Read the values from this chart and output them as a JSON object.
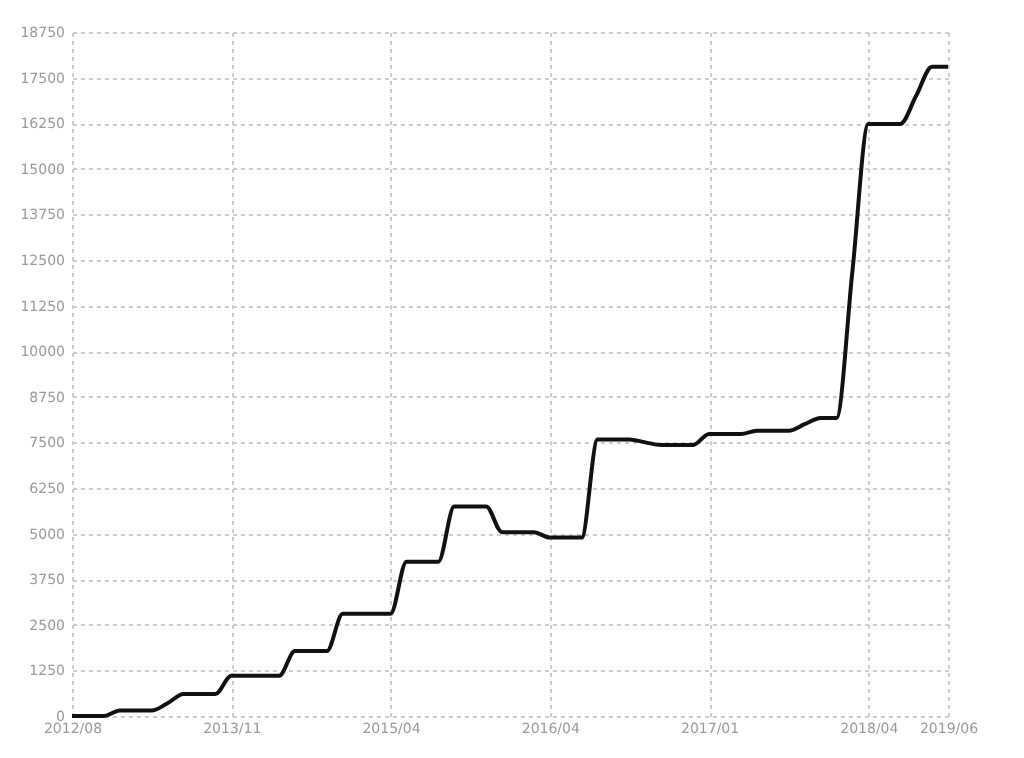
{
  "chart_data": {
    "type": "line",
    "categories": [
      "2012/08",
      null,
      null,
      null,
      null,
      null,
      null,
      null,
      null,
      null,
      "2013/11",
      null,
      null,
      null,
      null,
      null,
      null,
      null,
      null,
      null,
      "2015/04",
      null,
      null,
      null,
      null,
      null,
      null,
      null,
      null,
      null,
      "2016/04",
      null,
      null,
      null,
      null,
      null,
      null,
      null,
      null,
      null,
      "2017/01",
      null,
      null,
      null,
      null,
      null,
      null,
      null,
      null,
      null,
      "2018/04",
      null,
      null,
      null,
      null,
      "2019/06"
    ],
    "series": [
      {
        "color": "#111111",
        "values": [
          0,
          0,
          0,
          150,
          150,
          150,
          350,
          600,
          600,
          600,
          1100,
          1100,
          1100,
          1100,
          1780,
          1780,
          1780,
          2800,
          2800,
          2800,
          2800,
          4230,
          4230,
          4230,
          5740,
          5740,
          5740,
          5040,
          5040,
          5040,
          4890,
          4890,
          4890,
          7580,
          7580,
          7580,
          7500,
          7430,
          7430,
          7430,
          7730,
          7730,
          7730,
          7820,
          7820,
          7820,
          8000,
          8170,
          8170,
          12200,
          16230,
          16230,
          16230,
          17000,
          17800,
          17800
        ]
      }
    ],
    "ylim": [
      0,
      18750
    ],
    "yticks": [
      0,
      1250,
      2500,
      3750,
      5000,
      6250,
      7500,
      8750,
      10000,
      11250,
      12500,
      13750,
      15000,
      16250,
      17500,
      18750
    ],
    "grid": true,
    "marker": "none",
    "line_style": "solid"
  }
}
